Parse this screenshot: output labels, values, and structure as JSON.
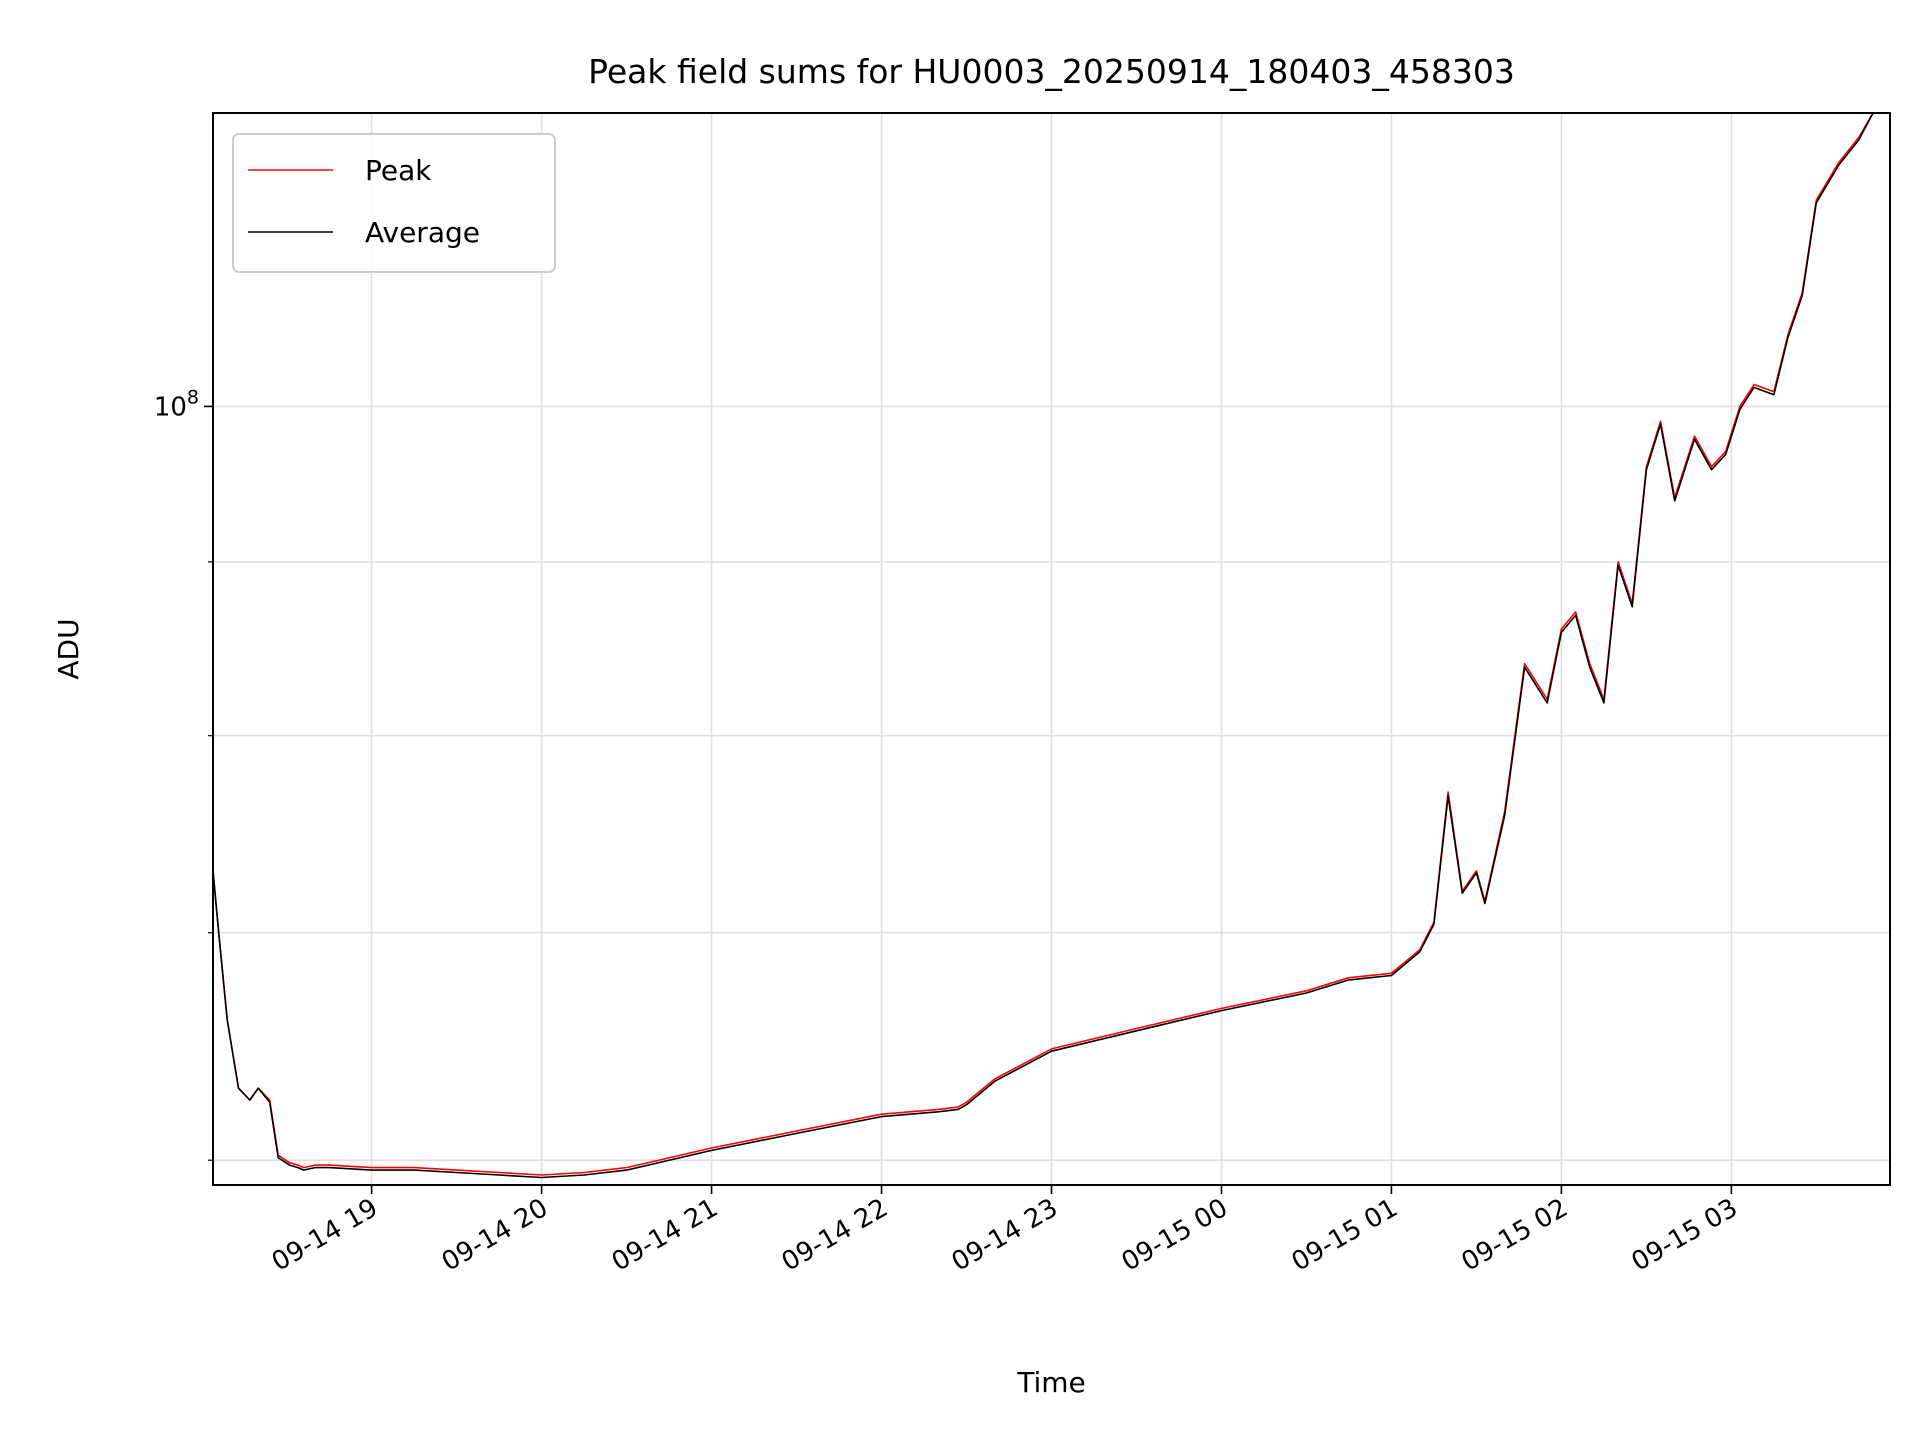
{
  "chart_data": {
    "type": "line",
    "title": "Peak field sums for HU0003_20250914_180403_458303",
    "xlabel": "Time",
    "ylabel": "ADU",
    "yscale": "log",
    "ylim": [
      59000000,
      122000000
    ],
    "xlim": [
      "2025-09-14 18:04",
      "2025-09-15 03:56"
    ],
    "x_tick_labels": [
      "09-14 19",
      "09-14 20",
      "09-14 21",
      "09-14 22",
      "09-14 23",
      "09-15 00",
      "09-15 01",
      "09-15 02",
      "09-15 03"
    ],
    "x_ticks": [
      "2025-09-14 19:00",
      "2025-09-14 20:00",
      "2025-09-14 21:00",
      "2025-09-14 22:00",
      "2025-09-14 23:00",
      "2025-09-15 00:00",
      "2025-09-15 01:00",
      "2025-09-15 02:00",
      "2025-09-15 03:00"
    ],
    "y_tick_labels": [
      {
        "base": "10",
        "exp": "8",
        "value": 100000000
      }
    ],
    "y_minor_ticks": [
      60000000,
      70000000,
      80000000,
      90000000,
      200000000
    ],
    "grid": true,
    "legend_position": "top-left",
    "series": [
      {
        "name": "Peak",
        "color": "#ff0000",
        "x": [
          "2025-09-14 18:04",
          "2025-09-14 18:06",
          "2025-09-14 18:09",
          "2025-09-14 18:13",
          "2025-09-14 18:17",
          "2025-09-14 18:20",
          "2025-09-14 18:24",
          "2025-09-14 18:27",
          "2025-09-14 18:31",
          "2025-09-14 18:34",
          "2025-09-14 18:36",
          "2025-09-14 18:40",
          "2025-09-14 18:45",
          "2025-09-14 19:00",
          "2025-09-14 19:15",
          "2025-09-14 19:30",
          "2025-09-14 19:45",
          "2025-09-14 20:00",
          "2025-09-14 20:15",
          "2025-09-14 20:30",
          "2025-09-14 21:00",
          "2025-09-14 21:30",
          "2025-09-14 22:00",
          "2025-09-14 22:20",
          "2025-09-14 22:27",
          "2025-09-14 22:30",
          "2025-09-14 22:40",
          "2025-09-14 23:00",
          "2025-09-14 23:30",
          "2025-09-15 00:00",
          "2025-09-15 00:30",
          "2025-09-15 00:45",
          "2025-09-15 01:00",
          "2025-09-15 01:10",
          "2025-09-15 01:15",
          "2025-09-15 01:20",
          "2025-09-15 01:25",
          "2025-09-15 01:30",
          "2025-09-15 01:33",
          "2025-09-15 01:40",
          "2025-09-15 01:47",
          "2025-09-15 01:55",
          "2025-09-15 02:00",
          "2025-09-15 02:05",
          "2025-09-15 02:10",
          "2025-09-15 02:15",
          "2025-09-15 02:20",
          "2025-09-15 02:25",
          "2025-09-15 02:30",
          "2025-09-15 02:35",
          "2025-09-15 02:40",
          "2025-09-15 02:47",
          "2025-09-15 02:53",
          "2025-09-15 02:58",
          "2025-09-15 03:03",
          "2025-09-15 03:08",
          "2025-09-15 03:15",
          "2025-09-15 03:20",
          "2025-09-15 03:25",
          "2025-09-15 03:30",
          "2025-09-15 03:38",
          "2025-09-15 03:45",
          "2025-09-15 03:50",
          "2025-09-15 03:56"
        ],
        "values": [
          73000000,
          70000000,
          66000000,
          63000000,
          62500000,
          63000000,
          62500000,
          60200000,
          59900000,
          59800000,
          59700000,
          59800000,
          59800000,
          59700000,
          59700000,
          59600000,
          59500000,
          59400000,
          59500000,
          59700000,
          60500000,
          61200000,
          61900000,
          62100000,
          62200000,
          62400000,
          63400000,
          64700000,
          65600000,
          66500000,
          67300000,
          67900000,
          68100000,
          69200000,
          70500000,
          77000000,
          72000000,
          73000000,
          71500000,
          76000000,
          84000000,
          82000000,
          86000000,
          87000000,
          84000000,
          82000000,
          90000000,
          87500000,
          96000000,
          99000000,
          94000000,
          98000000,
          96000000,
          97000000,
          100000000,
          101500000,
          101000000,
          105000000,
          108000000,
          115000000,
          118000000,
          120000000,
          122000000,
          122000000
        ]
      },
      {
        "name": "Average",
        "color": "#000000",
        "x": [
          "2025-09-14 18:04",
          "2025-09-14 18:06",
          "2025-09-14 18:09",
          "2025-09-14 18:13",
          "2025-09-14 18:17",
          "2025-09-14 18:20",
          "2025-09-14 18:24",
          "2025-09-14 18:27",
          "2025-09-14 18:31",
          "2025-09-14 18:34",
          "2025-09-14 18:36",
          "2025-09-14 18:40",
          "2025-09-14 18:45",
          "2025-09-14 19:00",
          "2025-09-14 19:15",
          "2025-09-14 19:30",
          "2025-09-14 19:45",
          "2025-09-14 20:00",
          "2025-09-14 20:15",
          "2025-09-14 20:30",
          "2025-09-14 21:00",
          "2025-09-14 21:30",
          "2025-09-14 22:00",
          "2025-09-14 22:20",
          "2025-09-14 22:27",
          "2025-09-14 22:30",
          "2025-09-14 22:40",
          "2025-09-14 23:00",
          "2025-09-14 23:30",
          "2025-09-15 00:00",
          "2025-09-15 00:30",
          "2025-09-15 00:45",
          "2025-09-15 01:00",
          "2025-09-15 01:10",
          "2025-09-15 01:15",
          "2025-09-15 01:20",
          "2025-09-15 01:25",
          "2025-09-15 01:30",
          "2025-09-15 01:33",
          "2025-09-15 01:40",
          "2025-09-15 01:47",
          "2025-09-15 01:55",
          "2025-09-15 02:00",
          "2025-09-15 02:05",
          "2025-09-15 02:10",
          "2025-09-15 02:15",
          "2025-09-15 02:20",
          "2025-09-15 02:25",
          "2025-09-15 02:30",
          "2025-09-15 02:35",
          "2025-09-15 02:40",
          "2025-09-15 02:47",
          "2025-09-15 02:53",
          "2025-09-15 02:58",
          "2025-09-15 03:03",
          "2025-09-15 03:08",
          "2025-09-15 03:15",
          "2025-09-15 03:20",
          "2025-09-15 03:25",
          "2025-09-15 03:30",
          "2025-09-15 03:38",
          "2025-09-15 03:45",
          "2025-09-15 03:50",
          "2025-09-15 03:56"
        ],
        "values": [
          73000000,
          70000000,
          66000000,
          63000000,
          62500000,
          63000000,
          62400000,
          60100000,
          59800000,
          59700000,
          59600000,
          59700000,
          59700000,
          59600000,
          59600000,
          59500000,
          59400000,
          59300000,
          59400000,
          59600000,
          60400000,
          61100000,
          61800000,
          62000000,
          62100000,
          62300000,
          63300000,
          64600000,
          65500000,
          66400000,
          67200000,
          67800000,
          68000000,
          69100000,
          70400000,
          76800000,
          71900000,
          72900000,
          71400000,
          75800000,
          83800000,
          81800000,
          85800000,
          86800000,
          83800000,
          81800000,
          89800000,
          87300000,
          95800000,
          98800000,
          93800000,
          97800000,
          95800000,
          96800000,
          99800000,
          101300000,
          100800000,
          104800000,
          107800000,
          114800000,
          117800000,
          119800000,
          122000000,
          122000000
        ]
      }
    ]
  }
}
